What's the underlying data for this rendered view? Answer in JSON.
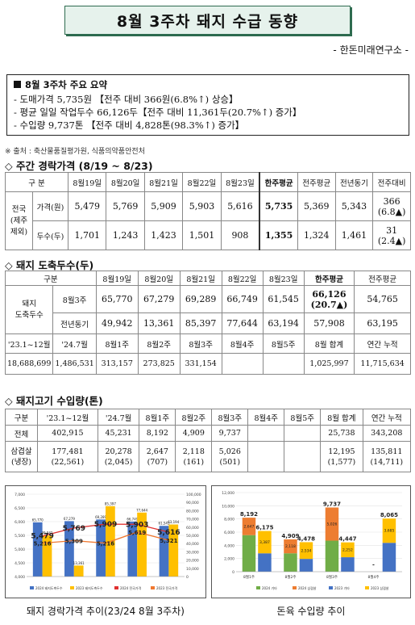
{
  "title": "8월 3주차 돼지 수급 동향",
  "org": "- 한돈미래연구소 -",
  "summary": {
    "heading": "8월 3주차 주요 요약",
    "lines": [
      "- 도매가격 5,735원 【전주 대비 366원(6.8%↑) 상승】",
      "- 평균 일일 작업두수 66,126두【전주 대비 11,361두(20.7%↑) 증가】",
      "- 수입량 9,737톤 【전주 대비 4,828톤(98.3%↑) 증가】"
    ]
  },
  "source": "※ 출처 : 축산물품질평가원, 식품의약품안전처",
  "section1": "◇ 주간 경락가격 (8/19 ~ 8/23)",
  "table1": {
    "corner": "구 분",
    "cols": [
      "8월19일",
      "8월20일",
      "8월21일",
      "8월22일",
      "8월23일",
      "한주평균",
      "전주평균",
      "전년동기",
      "전주대비"
    ],
    "rowgroup": "전국\n(제주\n제외)",
    "rows": [
      {
        "label": "가격(원)",
        "cells": [
          "5,479",
          "5,769",
          "5,909",
          "5,903",
          "5,616",
          "5,735",
          "5,369",
          "5,343"
        ],
        "diff": "366",
        "diff2": "(6.8▲)"
      },
      {
        "label": "두수(두)",
        "cells": [
          "1,701",
          "1,243",
          "1,423",
          "1,501",
          "908",
          "1,355",
          "1,324",
          "1,461"
        ],
        "diff": "31",
        "diff2": "(2.4▲)"
      }
    ]
  },
  "section2": "◇ 돼지 도축두수(두)",
  "table2": {
    "corner": "구분",
    "cols": [
      "8월19일",
      "8월20일",
      "8월21일",
      "8월22일",
      "8월23일",
      "한주평균",
      "전주평균"
    ],
    "rowgroup": "돼지\n도축두수",
    "rows": [
      {
        "label": "8월3주",
        "cells": [
          "65,770",
          "67,279",
          "69,289",
          "66,749",
          "61,545",
          "66,126",
          "54,765"
        ],
        "avg2": "(20.7▲)"
      },
      {
        "label": "전년동기",
        "cells": [
          "49,942",
          "13,361",
          "85,397",
          "77,644",
          "63,194",
          "57,908",
          "63,195"
        ]
      }
    ],
    "sub_header": [
      "'23.1~12월",
      "'24.7월",
      "8월1주",
      "8월2주",
      "8월3주",
      "8월4주",
      "8월5주",
      "8월 합계",
      "연간 누적"
    ],
    "sub_row": [
      "18,688,699",
      "1,486,531",
      "313,157",
      "273,825",
      "331,154",
      "",
      "",
      "1,025,997",
      "11,715,634"
    ]
  },
  "section3": "◇ 돼지고기 수입량(톤)",
  "table3": {
    "header": [
      "구분",
      "'23.1~12월",
      "'24.7월",
      "8월1주",
      "8월2주",
      "8월3주",
      "8월4주",
      "8월5주",
      "8월 합계",
      "연간 누적"
    ],
    "rows": [
      {
        "label": "전체",
        "cells": [
          "402,915",
          "45,231",
          "8,192",
          "4,909",
          "9,737",
          "",
          "",
          "25,738",
          "343,208"
        ]
      },
      {
        "label": "삼겹살",
        "label2": "(냉장)",
        "cells": [
          "177,481",
          "20,278",
          "2,647",
          "2,118",
          "5,026",
          "",
          "",
          "12,195",
          "135,811"
        ],
        "cells2": [
          "(22,561)",
          "(2,045)",
          "(707)",
          "(161)",
          "(501)",
          "",
          "",
          "(1,577)",
          "(14,711)"
        ]
      }
    ]
  },
  "caption1": "돼지 경락가격 추이(23/24 8월 3주차)",
  "caption2": "돈육 수입량 추이",
  "chart_data": [
    {
      "type": "bar",
      "categories": [
        "8월19일",
        "8월20일",
        "8월21일",
        "8월22일",
        "8월23일"
      ],
      "left_ylim": [
        4000,
        7000
      ],
      "left_ticks": [
        "4,000",
        "4,500",
        "5,000",
        "5,500",
        "6,000",
        "6,500",
        "7,000"
      ],
      "right_ylim": [
        0,
        100000
      ],
      "right_ticks": [
        "0",
        "10,000",
        "20,000",
        "30,000",
        "40,000",
        "50,000",
        "60,000",
        "70,000",
        "80,000",
        "90,000",
        "100,000"
      ],
      "series": [
        {
          "name": "2024 돼지도축두수",
          "values": [
            65770,
            67279,
            69289,
            66749,
            61545
          ],
          "labels": [
            "65,770",
            "67,279",
            "69,289",
            "66,749",
            "61,545"
          ],
          "color": "#4472c4",
          "axis": "right"
        },
        {
          "name": "2023 돼지도축두수",
          "values": [
            49942,
            13361,
            85397,
            77644,
            63194
          ],
          "labels": [
            "49,942",
            "13,361",
            "85,397",
            "77,644",
            "63,194"
          ],
          "color": "#ffc000",
          "axis": "right"
        },
        {
          "name": "2024 전국가격",
          "values": [
            5479,
            5769,
            5909,
            5903,
            5616
          ],
          "labels": [
            "5,479",
            "5,769",
            "5,909",
            "5,903",
            "5,616"
          ],
          "color": "#e03030",
          "axis": "left"
        },
        {
          "name": "2023 전국가격",
          "values": [
            5216,
            5309,
            5216,
            5619,
            5321
          ],
          "labels": [
            "5,216",
            "5,309",
            "5,216",
            "5,619",
            "5,321"
          ],
          "color": "#f07830",
          "axis": "left"
        }
      ],
      "legend": "bottom"
    },
    {
      "type": "bar",
      "categories": [
        "8월1주",
        "8월2주",
        "8월3주",
        "8월4주"
      ],
      "ylim": [
        0,
        12000
      ],
      "ticks": [
        "0",
        "2,000",
        "4,000",
        "6,000",
        "8,000",
        "10,000",
        "12,000"
      ],
      "series": [
        {
          "name": "2024 기타",
          "values": [
            5545,
            2791,
            4711,
            null
          ],
          "color": "#70ad47"
        },
        {
          "name": "2024 삼겹살",
          "values": [
            2647,
            2118,
            5026,
            null
          ],
          "labels": [
            "2,647",
            "2,118",
            "5,026",
            ""
          ],
          "color": "#ed7d31"
        },
        {
          "name": "2023 기타",
          "values": [
            2788,
            1944,
            2195,
            4380
          ],
          "color": "#4472c4"
        },
        {
          "name": "2023 삼겹살",
          "values": [
            3387,
            2534,
            2252,
            3685
          ],
          "labels": [
            "3,387",
            "2,534",
            "2,252",
            "3,685"
          ],
          "color": "#ffc000"
        }
      ],
      "totals_2024": [
        "8,192",
        "4,909",
        "9,737",
        "-"
      ],
      "totals_2023": [
        "6,175",
        "4,478",
        "4,447",
        "8,065"
      ],
      "legend": "bottom"
    }
  ]
}
